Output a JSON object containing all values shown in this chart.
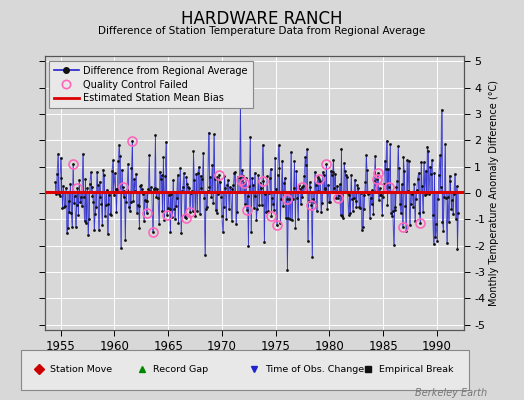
{
  "title": "HARDWARE RANCH",
  "subtitle": "Difference of Station Temperature Data from Regional Average",
  "ylabel": "Monthly Temperature Anomaly Difference (°C)",
  "xlabel_ticks": [
    1955,
    1960,
    1965,
    1970,
    1975,
    1980,
    1985,
    1990
  ],
  "yticks": [
    -4,
    -3,
    -2,
    -1,
    0,
    1,
    2,
    3,
    4
  ],
  "yticks_outer": [
    -5,
    -4,
    -3,
    -2,
    -1,
    0,
    1,
    2,
    3,
    4,
    5
  ],
  "ylim": [
    -5.2,
    5.2
  ],
  "xlim": [
    1953.5,
    1992.5
  ],
  "mean_bias": 0.05,
  "background_color": "#d8d8d8",
  "plot_bg_color": "#d8d8d8",
  "line_color": "#2222cc",
  "bias_color": "#dd0000",
  "marker_color": "#111111",
  "qc_color": "#ff66bb",
  "watermark": "Berkeley Earth",
  "seed": 42,
  "n_points": 456,
  "x_start": 1954.5,
  "x_end": 1992.0
}
